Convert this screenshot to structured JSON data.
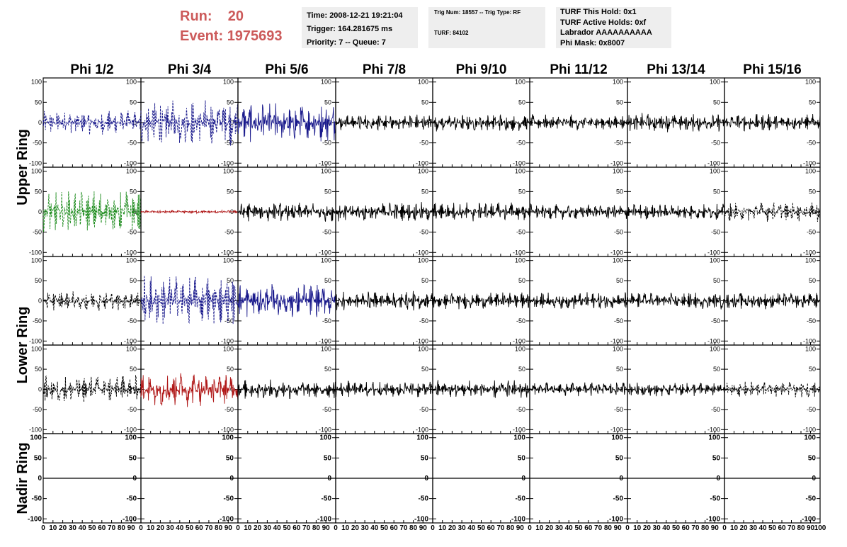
{
  "header": {
    "run_label": "Run:",
    "run_value": "20",
    "event_label": "Event:",
    "event_value": "1975693",
    "box1": [
      "Time: 2008-12-21 19:21:04",
      "Trigger: 164.281675 ms",
      "Priority: 7 -- Queue: 7"
    ],
    "box2": [
      "Trig Num: 18557 -- Trig Type: RF",
      "TURF: 84102"
    ],
    "box3": [
      "TURF This Hold: 0x1",
      "TURF Active Holds: 0xf",
      "Labrador AAAAAAAAAA",
      "Phi Mask: 0x8007"
    ]
  },
  "colors": {
    "accent_text": "#cc5a5a",
    "info_bg": "#eeeeee",
    "black": "#000000",
    "blue": "#1a1a8c",
    "green": "#1e8c1e",
    "red": "#b01818"
  },
  "chart_data": {
    "type": "line",
    "columns": [
      "Phi 1/2",
      "Phi 3/4",
      "Phi 5/6",
      "Phi 7/8",
      "Phi 9/10",
      "Phi 11/12",
      "Phi 13/14",
      "Phi 15/16"
    ],
    "rows": [
      "Upper Ring",
      "Lower Ring",
      "Nadir Ring"
    ],
    "xlim": [
      0,
      100
    ],
    "ylim": [
      -110,
      110
    ],
    "x_ticks": [
      "0",
      "10",
      "20",
      "30",
      "40",
      "50",
      "60",
      "70",
      "80",
      "90",
      "100"
    ],
    "y_ticks": [
      "100",
      "50",
      "0",
      "-50",
      "-100"
    ],
    "grid": false,
    "panels": [
      {
        "row": 0,
        "col": 0,
        "color": "blue",
        "dash": true,
        "amp": 30
      },
      {
        "row": 0,
        "col": 1,
        "color": "blue",
        "dash": true,
        "amp": 60
      },
      {
        "row": 0,
        "col": 2,
        "color": "blue",
        "dash": false,
        "amp": 50
      },
      {
        "row": 0,
        "col": 3,
        "color": "black",
        "dash": false,
        "amp": 22
      },
      {
        "row": 0,
        "col": 4,
        "color": "black",
        "dash": false,
        "amp": 22
      },
      {
        "row": 0,
        "col": 5,
        "color": "black",
        "dash": false,
        "amp": 20
      },
      {
        "row": 0,
        "col": 6,
        "color": "black",
        "dash": false,
        "amp": 24
      },
      {
        "row": 0,
        "col": 7,
        "color": "black",
        "dash": false,
        "amp": 22
      },
      {
        "row": 1,
        "col": 0,
        "color": "green",
        "dash": true,
        "amp": 55
      },
      {
        "row": 1,
        "col": 1,
        "color": "red",
        "dash": false,
        "amp": 4
      },
      {
        "row": 1,
        "col": 2,
        "color": "black",
        "dash": false,
        "amp": 25
      },
      {
        "row": 1,
        "col": 3,
        "color": "black",
        "dash": false,
        "amp": 25
      },
      {
        "row": 1,
        "col": 4,
        "color": "black",
        "dash": false,
        "amp": 25
      },
      {
        "row": 1,
        "col": 5,
        "color": "black",
        "dash": false,
        "amp": 20
      },
      {
        "row": 1,
        "col": 6,
        "color": "black",
        "dash": false,
        "amp": 20
      },
      {
        "row": 1,
        "col": 7,
        "color": "black",
        "dash": true,
        "amp": 25
      },
      {
        "row": 2,
        "col": 0,
        "color": "black",
        "dash": true,
        "amp": 25
      },
      {
        "row": 2,
        "col": 1,
        "color": "blue",
        "dash": true,
        "amp": 65
      },
      {
        "row": 2,
        "col": 2,
        "color": "blue",
        "dash": false,
        "amp": 45
      },
      {
        "row": 2,
        "col": 3,
        "color": "black",
        "dash": false,
        "amp": 25
      },
      {
        "row": 2,
        "col": 4,
        "color": "black",
        "dash": false,
        "amp": 22
      },
      {
        "row": 2,
        "col": 5,
        "color": "black",
        "dash": false,
        "amp": 22
      },
      {
        "row": 2,
        "col": 6,
        "color": "black",
        "dash": false,
        "amp": 22
      },
      {
        "row": 2,
        "col": 7,
        "color": "black",
        "dash": false,
        "amp": 22
      },
      {
        "row": 3,
        "col": 0,
        "color": "black",
        "dash": true,
        "amp": 35
      },
      {
        "row": 3,
        "col": 1,
        "color": "red",
        "dash": false,
        "amp": 45
      },
      {
        "row": 3,
        "col": 2,
        "color": "black",
        "dash": false,
        "amp": 25
      },
      {
        "row": 3,
        "col": 3,
        "color": "black",
        "dash": false,
        "amp": 22
      },
      {
        "row": 3,
        "col": 4,
        "color": "black",
        "dash": false,
        "amp": 25
      },
      {
        "row": 3,
        "col": 5,
        "color": "black",
        "dash": false,
        "amp": 18
      },
      {
        "row": 3,
        "col": 6,
        "color": "black",
        "dash": false,
        "amp": 18
      },
      {
        "row": 3,
        "col": 7,
        "color": "black",
        "dash": true,
        "amp": 20
      },
      {
        "row": 4,
        "col": 0,
        "color": "black",
        "dash": false,
        "amp": 0
      },
      {
        "row": 4,
        "col": 1,
        "color": "black",
        "dash": false,
        "amp": 0
      },
      {
        "row": 4,
        "col": 2,
        "color": "black",
        "dash": false,
        "amp": 0
      },
      {
        "row": 4,
        "col": 3,
        "color": "black",
        "dash": false,
        "amp": 0
      },
      {
        "row": 4,
        "col": 4,
        "color": "black",
        "dash": false,
        "amp": 0
      },
      {
        "row": 4,
        "col": 5,
        "color": "black",
        "dash": false,
        "amp": 0
      },
      {
        "row": 4,
        "col": 6,
        "color": "black",
        "dash": false,
        "amp": 0
      },
      {
        "row": 4,
        "col": 7,
        "color": "black",
        "dash": false,
        "amp": 0
      }
    ]
  }
}
